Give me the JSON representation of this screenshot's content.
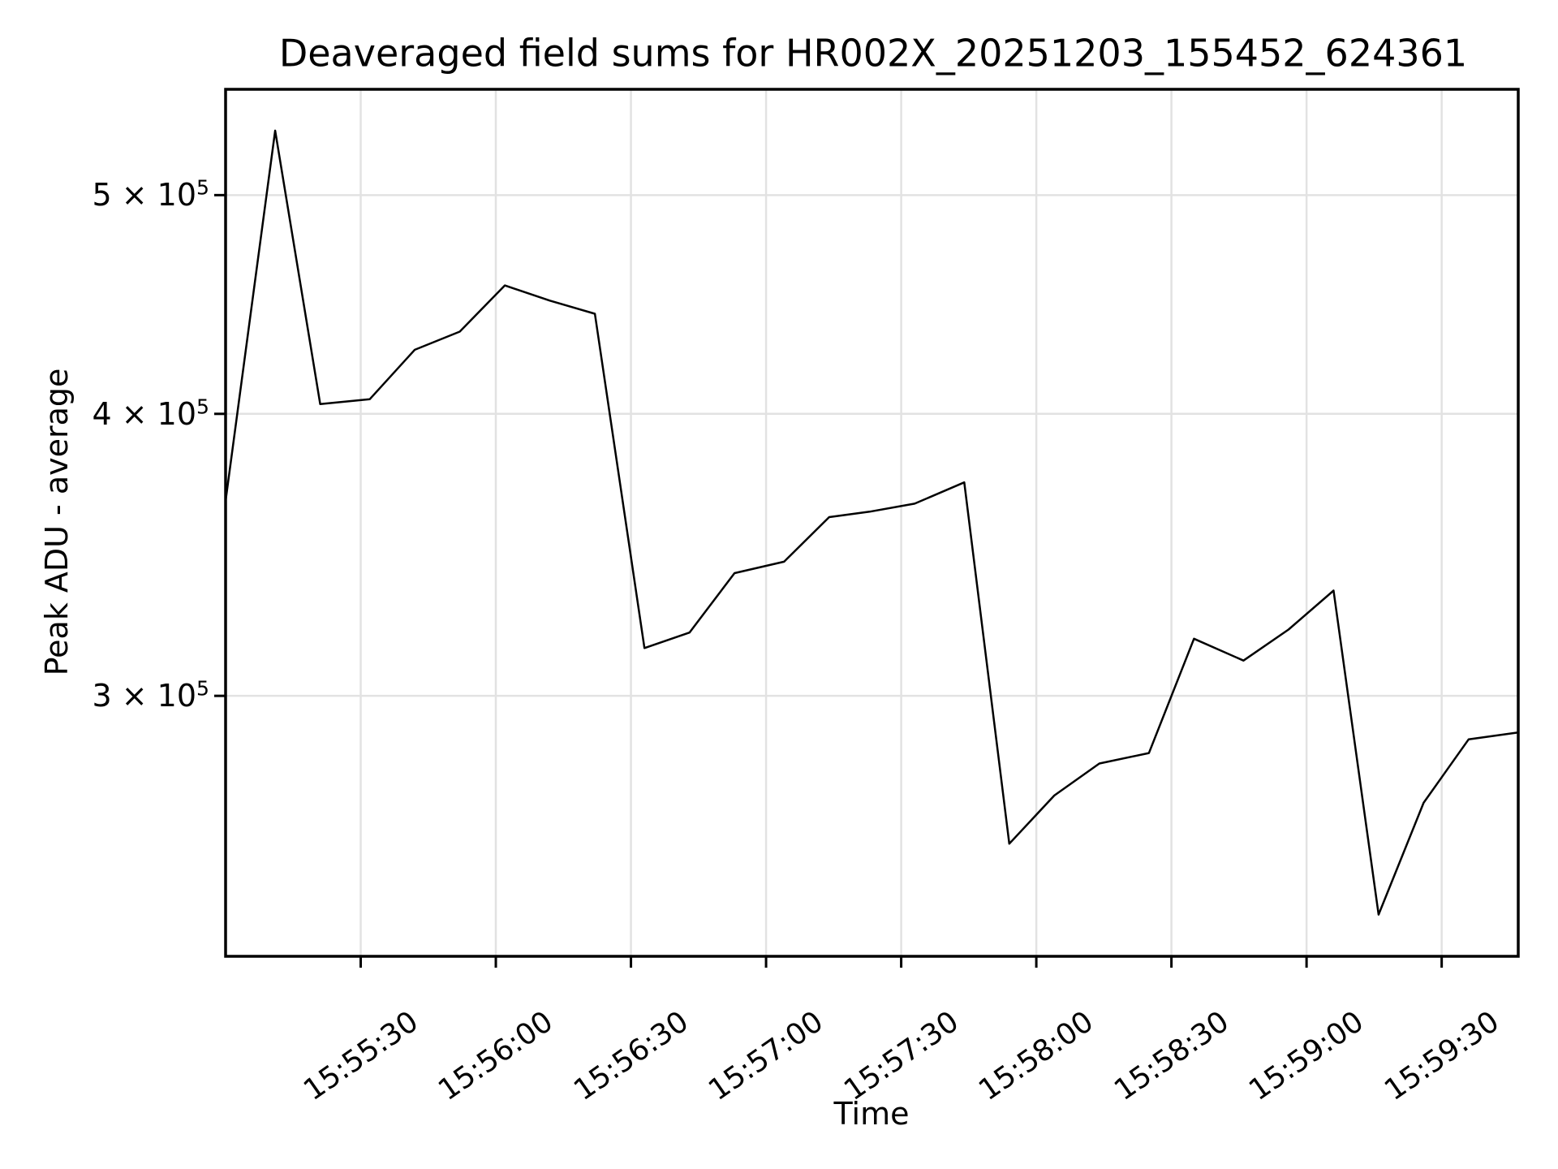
{
  "figure": {
    "background": "#ffffff",
    "text_color": "#000000"
  },
  "chart_data": {
    "type": "line",
    "title": "Deaveraged field sums for HR002X_20251203_155452_624361",
    "xlabel": "Time",
    "ylabel": "Peak ADU - average",
    "yscale": "log",
    "grid": true,
    "legend": false,
    "xlim": [
      "15:55:00",
      "15:59:47"
    ],
    "ylim": [
      230000,
      557000
    ],
    "x_tick_labels": [
      "15:55:30",
      "15:56:00",
      "15:56:30",
      "15:57:00",
      "15:57:30",
      "15:58:00",
      "15:58:30",
      "15:59:00",
      "15:59:30"
    ],
    "y_ticks": [
      {
        "value": 500000,
        "mantissa": "5 × 10",
        "exponent": "5"
      },
      {
        "value": 400000,
        "mantissa": "4 × 10",
        "exponent": "5"
      },
      {
        "value": 300000,
        "mantissa": "3 × 10",
        "exponent": "5"
      }
    ],
    "colors": {
      "line": "#000000",
      "grid": "#e2e2e2",
      "spine": "#000000",
      "background": "#ffffff"
    },
    "series": [
      {
        "name": "Peak ADU - average",
        "x": [
          "15:55:00",
          "15:55:11",
          "15:55:21",
          "15:55:32",
          "15:55:42",
          "15:55:52",
          "15:56:02",
          "15:56:12",
          "15:56:22",
          "15:56:33",
          "15:56:43",
          "15:56:53",
          "15:57:04",
          "15:57:14",
          "15:57:23",
          "15:57:33",
          "15:57:44",
          "15:57:54",
          "15:58:04",
          "15:58:14",
          "15:58:25",
          "15:58:35",
          "15:58:46",
          "15:58:56",
          "15:59:06",
          "15:59:16",
          "15:59:26",
          "15:59:36",
          "15:59:47"
        ],
        "y": [
          366000,
          534000,
          404000,
          406000,
          427000,
          435000,
          456000,
          449000,
          443000,
          315000,
          320000,
          340000,
          344000,
          360000,
          362000,
          365000,
          373000,
          258000,
          271000,
          280000,
          283000,
          318000,
          311000,
          321000,
          334000,
          240000,
          269000,
          287000,
          289000
        ]
      }
    ]
  }
}
